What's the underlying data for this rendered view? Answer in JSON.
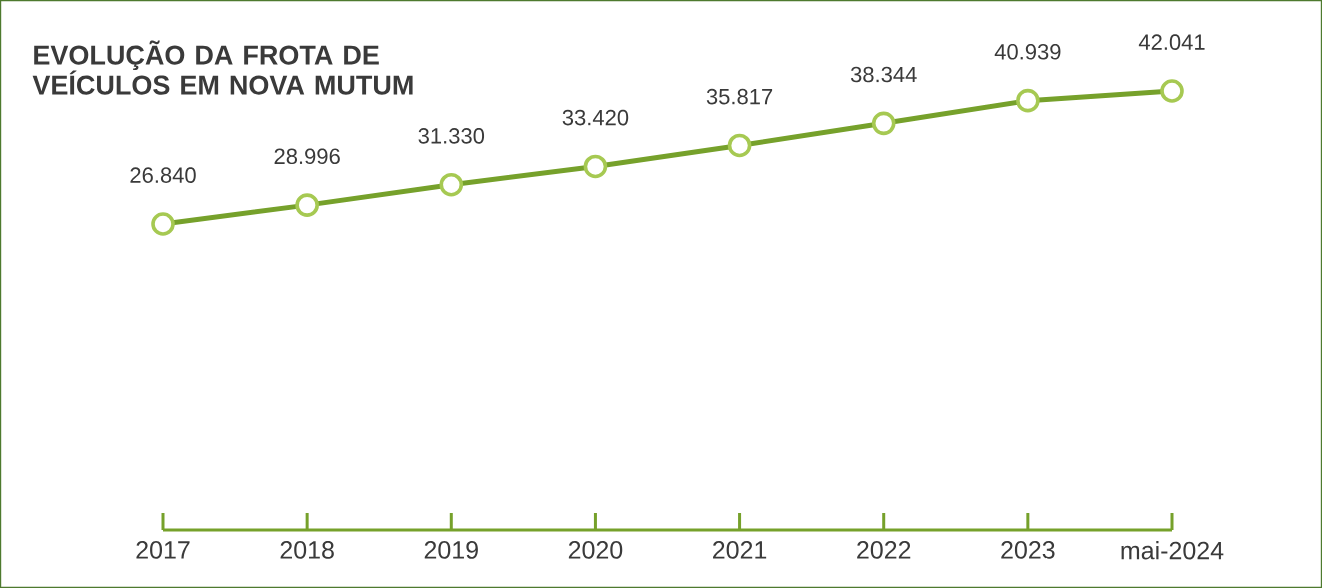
{
  "chart_data": {
    "type": "line",
    "title": "EVOLUÇÃO DA FROTA DE VEÍCULOS EM NOVA MUTUM",
    "categories": [
      "2017",
      "2018",
      "2019",
      "2020",
      "2021",
      "2022",
      "2023",
      "mai-2024"
    ],
    "values": [
      26840,
      28996,
      31330,
      33420,
      35817,
      38344,
      40939,
      42041
    ],
    "value_labels": [
      "26.840",
      "28.996",
      "31.330",
      "33.420",
      "35.817",
      "38.344",
      "40.939",
      "42.041"
    ],
    "color": "#76a12b",
    "marker": "circle"
  }
}
